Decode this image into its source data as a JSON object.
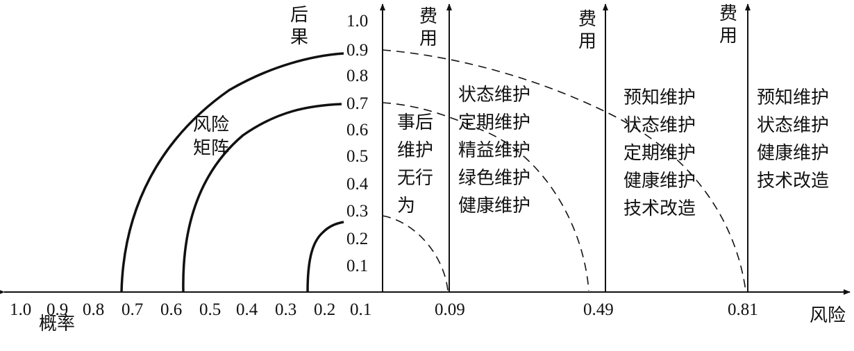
{
  "axes": {
    "consequence_label": "后果",
    "probability_label": "概率",
    "risk_label": "风险",
    "cost_label": "费用"
  },
  "consequence_ticks": [
    "1.0",
    "0.9",
    "0.8",
    "0.7",
    "0.6",
    "0.5",
    "0.4",
    "0.3",
    "0.2",
    "0.1"
  ],
  "probability_ticks": [
    "1.0",
    "0.9",
    "0.8",
    "0.7",
    "0.6",
    "0.5",
    "0.4",
    "0.3",
    "0.2",
    "0.1"
  ],
  "risk_ticks": [
    "0.09",
    "0.49",
    "0.81"
  ],
  "risk_matrix_label": "风险矩阵",
  "zones": [
    {
      "lines": [
        "事后",
        "维护",
        "无行",
        "为"
      ]
    },
    {
      "lines": [
        "状态维护",
        "定期维护",
        "精益维护",
        "绿色维护",
        "健康维护"
      ]
    },
    {
      "lines": [
        "预知维护",
        "状态维护",
        "定期维护",
        "健康维护",
        "技术改造"
      ]
    },
    {
      "lines": [
        "预知维护",
        "状态维护",
        "健康维护",
        "技术改造"
      ]
    }
  ],
  "colors": {
    "ink": "#111111",
    "background": "#ffffff"
  }
}
